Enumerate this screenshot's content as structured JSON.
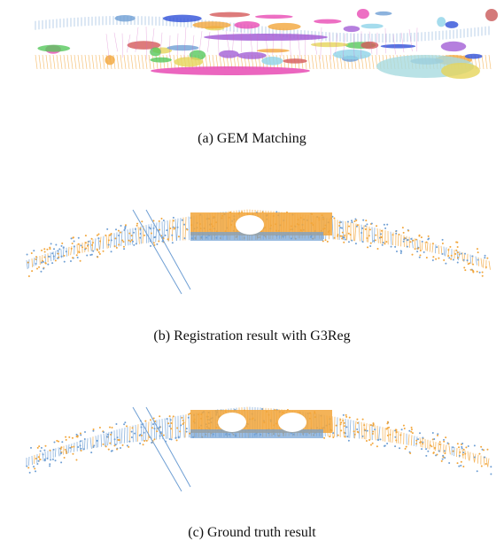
{
  "figure": {
    "panels": [
      {
        "caption": "(a) GEM Matching"
      },
      {
        "caption": "(b) Registration result with G3Reg"
      },
      {
        "caption": "(c) Ground truth result"
      }
    ]
  }
}
